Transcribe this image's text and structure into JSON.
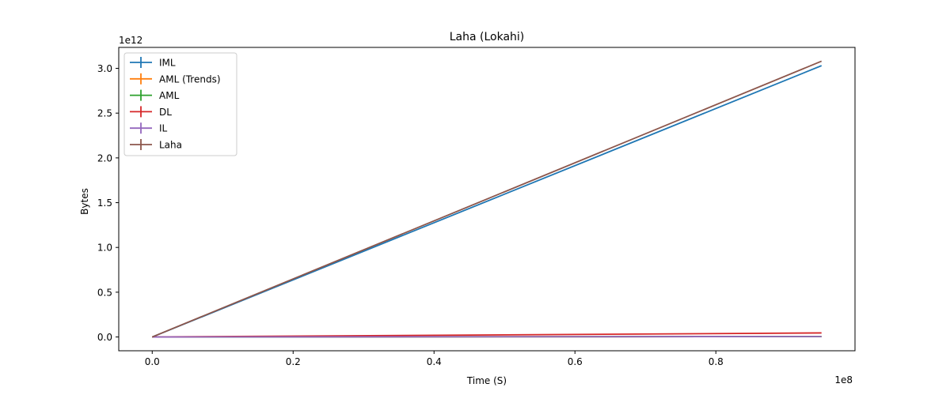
{
  "chart_data": {
    "type": "line",
    "title": "Laha (Lokahi)",
    "xlabel": "Time (S)",
    "ylabel": "Bytes",
    "x_offset_label": "1e8",
    "y_offset_label": "1e12",
    "xlim": [
      -0.0475,
      0.9975
    ],
    "ylim": [
      -0.154,
      3.234
    ],
    "x_ticks": [
      0.0,
      0.2,
      0.4,
      0.6,
      0.8
    ],
    "x_tick_labels": [
      "0.0",
      "0.2",
      "0.4",
      "0.6",
      "0.8"
    ],
    "y_ticks": [
      0.0,
      0.5,
      1.0,
      1.5,
      2.0,
      2.5,
      3.0
    ],
    "y_tick_labels": [
      "0.0",
      "0.5",
      "1.0",
      "1.5",
      "2.0",
      "2.5",
      "3.0"
    ],
    "legend_position": "upper-left",
    "grid": false,
    "series": [
      {
        "name": "IML",
        "color": "#1f77b4",
        "x": [
          0.0,
          0.95
        ],
        "y": [
          0.0,
          3.03
        ]
      },
      {
        "name": "AML (Trends)",
        "color": "#ff7f0e",
        "x": [
          0.0,
          0.95
        ],
        "y": [
          0.0,
          0.005
        ]
      },
      {
        "name": "AML",
        "color": "#2ca02c",
        "x": [
          0.0,
          0.95
        ],
        "y": [
          0.0,
          0.005
        ]
      },
      {
        "name": "DL",
        "color": "#d62728",
        "x": [
          0.0,
          0.95
        ],
        "y": [
          0.0,
          0.045
        ]
      },
      {
        "name": "IL",
        "color": "#9467bd",
        "x": [
          0.0,
          0.95
        ],
        "y": [
          0.0,
          0.005
        ]
      },
      {
        "name": "Laha",
        "color": "#8c564b",
        "x": [
          0.0,
          0.95
        ],
        "y": [
          0.0,
          3.08
        ]
      }
    ]
  }
}
